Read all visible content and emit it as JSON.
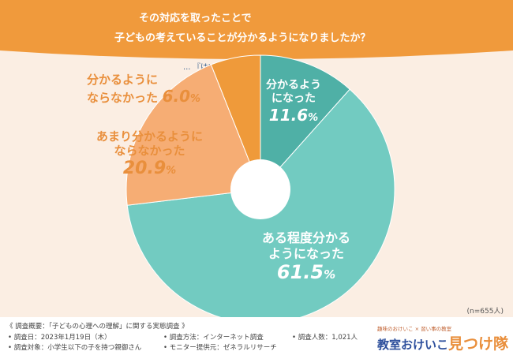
{
  "header": {
    "line1": "その対応を取ったことで",
    "line2": "子どもの考えていることが分かるようになりましたか？",
    "note": "… 『はい』と回答した方が回答…"
  },
  "colors": {
    "banner": "#f09a3c",
    "teal_dark": "#4fb0a6",
    "teal": "#72cbc1",
    "peach": "#f6ad74",
    "orange": "#ef9a3a",
    "background": "#fbeee3"
  },
  "chart_data": {
    "type": "pie",
    "donut": true,
    "slices": [
      {
        "label_lines": [
          "分かるよう",
          "になった"
        ],
        "value": 11.6,
        "color": "#4fb0a6"
      },
      {
        "label_lines": [
          "ある程度分かる",
          "ようになった"
        ],
        "value": 61.5,
        "color": "#72cbc1"
      },
      {
        "label_lines": [
          "あまり分かるように",
          "ならなかった"
        ],
        "value": 20.9,
        "color": "#f6ad74"
      },
      {
        "label_lines": [
          "分かるように",
          "ならなかった"
        ],
        "value": 6.0,
        "color": "#ef9a3a"
      }
    ],
    "sample_size": "(n=655人)"
  },
  "footer": {
    "overview": "《 調査概要：「子どもの心理への理解」に関する実態調査 》",
    "date": "• 調査日：2023年1月19日（木）",
    "method": "• 調査方法：インターネット調査",
    "count": "• 調査人数：1,021人",
    "target": "• 調査対象：小学生以下の子を持つ親御さん",
    "provider": "• モニター提供元：ゼネラルリサーチ"
  },
  "logo": {
    "tagline": "趣味のおけいこ × 習い事の教室",
    "name": "教室おけいこ",
    "name_accent": "見つけ隊"
  }
}
